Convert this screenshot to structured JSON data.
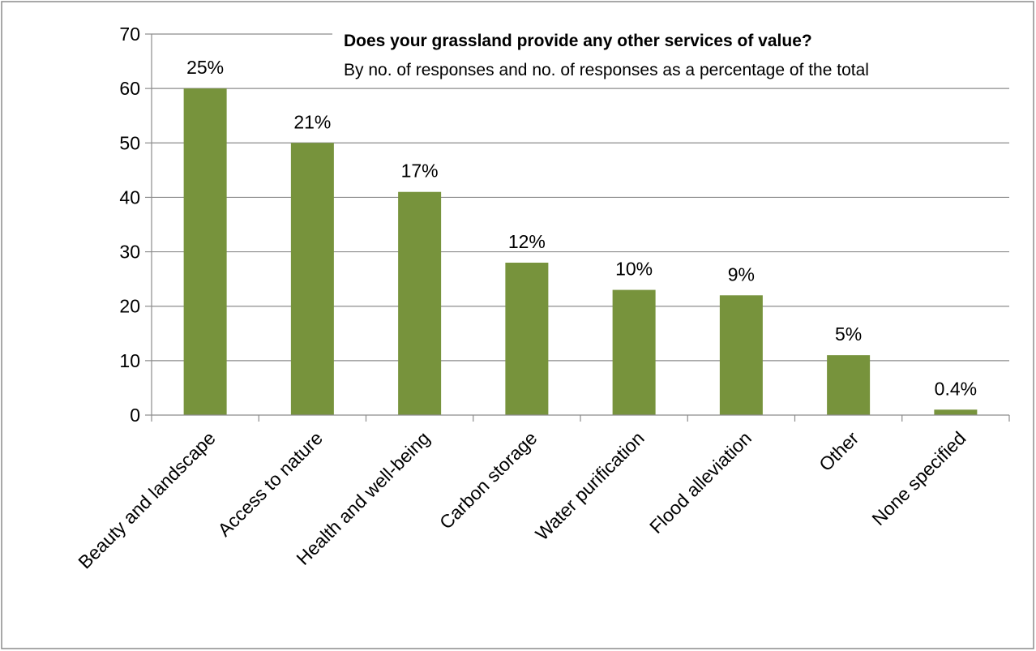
{
  "chart_data": {
    "type": "bar",
    "title": "Does your grassland provide any other services of value?",
    "subtitle": "By no. of responses and no. of responses as a percentage of the total",
    "xlabel": "",
    "ylabel": "",
    "ylim": [
      0,
      70
    ],
    "yticks": [
      0,
      10,
      20,
      30,
      40,
      50,
      60,
      70
    ],
    "grid": true,
    "legend": "none",
    "bar_color": "#77933C",
    "categories": [
      "Beauty and landscape",
      "Access to nature",
      "Health and well-being",
      "Carbon storage",
      "Water purification",
      "Flood alleviation",
      "Other",
      "None specified"
    ],
    "values": [
      60,
      50,
      41,
      28,
      23,
      22,
      11,
      1
    ],
    "data_labels": [
      "25%",
      "21%",
      "17%",
      "12%",
      "10%",
      "9%",
      "5%",
      "0.4%"
    ]
  }
}
